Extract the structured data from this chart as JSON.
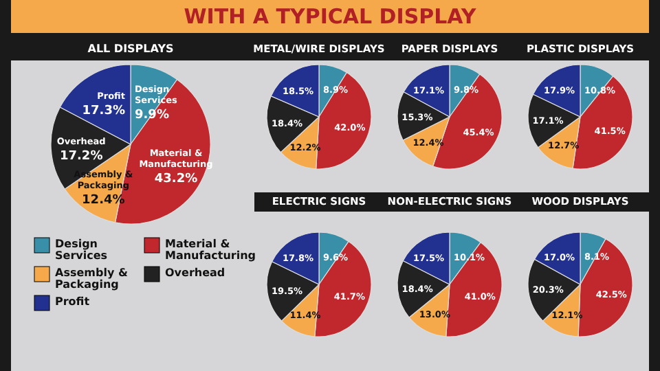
{
  "chart_data": [
    {
      "type": "other",
      "title": "WITH A TYPICAL DISPLAY"
    },
    {
      "type": "pie",
      "title": "ALL DISPLAYS",
      "categories": [
        "Design Services",
        "Material & Manufacturing",
        "Assembly & Packaging",
        "Overhead",
        "Profit"
      ],
      "values": [
        9.9,
        43.2,
        12.4,
        17.2,
        17.3
      ],
      "value_labels": [
        "9.9%",
        "43.2%",
        "12.4%",
        "17.2%",
        "17.3%"
      ],
      "colors": [
        "#3a8fa8",
        "#c0282d",
        "#f5a94a",
        "#222222",
        "#22308f"
      ],
      "legend": "bottom"
    },
    {
      "type": "pie",
      "title": "METAL/WIRE DISPLAYS",
      "categories": [
        null,
        null,
        null,
        null,
        null
      ],
      "values": [
        8.9,
        42.0,
        12.2,
        18.4,
        18.5
      ],
      "value_labels": [
        "8.9%",
        "42.0%",
        "12.2%",
        "18.4%",
        "18.5%"
      ],
      "colors": [
        "#3a8fa8",
        "#c0282d",
        "#f5a94a",
        "#222222",
        "#22308f"
      ]
    },
    {
      "type": "pie",
      "title": "PAPER DISPLAYS",
      "categories": [
        null,
        null,
        null,
        null,
        null
      ],
      "values": [
        9.8,
        45.4,
        12.4,
        15.3,
        17.1
      ],
      "value_labels": [
        "9.8%",
        "45.4%",
        "12.4%",
        "15.3%",
        "17.1%"
      ],
      "colors": [
        "#3a8fa8",
        "#c0282d",
        "#f5a94a",
        "#222222",
        "#22308f"
      ]
    },
    {
      "type": "pie",
      "title": "PLASTIC DISPLAYS",
      "categories": [
        null,
        null,
        null,
        null,
        null
      ],
      "values": [
        10.8,
        41.5,
        12.7,
        17.1,
        17.9
      ],
      "value_labels": [
        "10.8%",
        "41.5%",
        "12.7%",
        "17.1%",
        "17.9%"
      ],
      "colors": [
        "#3a8fa8",
        "#c0282d",
        "#f5a94a",
        "#222222",
        "#22308f"
      ]
    },
    {
      "type": "pie",
      "title": "ELECTRIC SIGNS",
      "categories": [
        null,
        null,
        null,
        null,
        null
      ],
      "values": [
        9.6,
        41.7,
        11.4,
        19.5,
        17.8
      ],
      "value_labels": [
        "9.6%",
        "41.7%",
        "11.4%",
        "19.5%",
        "17.8%"
      ],
      "colors": [
        "#3a8fa8",
        "#c0282d",
        "#f5a94a",
        "#222222",
        "#22308f"
      ]
    },
    {
      "type": "pie",
      "title": "NON-ELECTRIC SIGNS",
      "categories": [
        null,
        null,
        null,
        null,
        null
      ],
      "values": [
        10.1,
        41.0,
        13.0,
        18.4,
        17.5
      ],
      "value_labels": [
        "10.1%",
        "41.0%",
        "13.0%",
        "18.4%",
        "17.5%"
      ],
      "colors": [
        "#3a8fa8",
        "#c0282d",
        "#f5a94a",
        "#222222",
        "#22308f"
      ]
    },
    {
      "type": "pie",
      "title": "WOOD DISPLAYS",
      "categories": [
        null,
        null,
        null,
        null,
        null
      ],
      "values": [
        8.1,
        42.5,
        12.1,
        20.3,
        17.0
      ],
      "value_labels": [
        "8.1%",
        "42.5%",
        "12.1%",
        "20.3%",
        "17.0%"
      ],
      "colors": [
        "#3a8fa8",
        "#c0282d",
        "#f5a94a",
        "#222222",
        "#22308f"
      ]
    }
  ]
}
